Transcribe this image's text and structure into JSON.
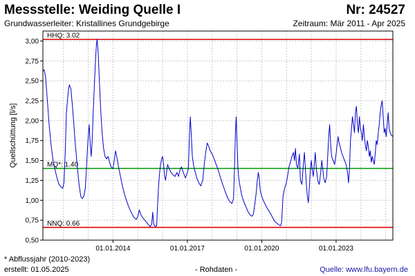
{
  "header": {
    "title": "Messstelle: Weiding Quelle I",
    "station_number": "Nr: 24527",
    "subtitle": "Grundwasserleiter: Kristallines Grundgebirge",
    "period": "Zeitraum: Mär 2011 - Apr 2025"
  },
  "footer": {
    "footnote": "* Abflussjahr (2010-2023)",
    "created": "erstellt:  01.05.2025",
    "raw_data": "- Rohdaten -",
    "source": "Quelle: www.lfu.bayern.de"
  },
  "colors": {
    "series": "#0000cc",
    "hhq": "#dd0000",
    "mq": "#009900",
    "nnq": "#dd0000",
    "grid": "#c8c8c8"
  },
  "chart_data": {
    "type": "line",
    "title": "Messstelle: Weiding Quelle I",
    "xlabel": "",
    "ylabel": "Quellschüttung [l/s]",
    "ylim": [
      0.5,
      3.125
    ],
    "xlim": [
      2011.17,
      2025.29
    ],
    "grid": true,
    "y_ticks": [
      "0,50",
      "0,75",
      "1,00",
      "1,25",
      "1,50",
      "1,75",
      "2,00",
      "2,25",
      "2,50",
      "2,75",
      "3,00"
    ],
    "x_ticks": [
      {
        "x": 2014.0,
        "label": "01.01.2014"
      },
      {
        "x": 2017.0,
        "label": "01.01.2017"
      },
      {
        "x": 2020.0,
        "label": "01.01.2020"
      },
      {
        "x": 2023.0,
        "label": "01.01.2023"
      }
    ],
    "reference_lines": [
      {
        "key": "hhq",
        "label": "HHQ: 3.02",
        "value": 3.02
      },
      {
        "key": "mq",
        "label": "MQ*: 1.40",
        "value": 1.4
      },
      {
        "key": "nnq",
        "label": "NNQ: 0.66",
        "value": 0.66
      }
    ],
    "series": [
      {
        "points": [
          [
            2011.17,
            2.62
          ],
          [
            2011.22,
            2.64
          ],
          [
            2011.28,
            2.55
          ],
          [
            2011.35,
            2.25
          ],
          [
            2011.42,
            1.95
          ],
          [
            2011.5,
            1.7
          ],
          [
            2011.58,
            1.5
          ],
          [
            2011.66,
            1.38
          ],
          [
            2011.74,
            1.28
          ],
          [
            2011.82,
            1.2
          ],
          [
            2011.9,
            1.17
          ],
          [
            2011.97,
            1.15
          ],
          [
            2012.02,
            1.22
          ],
          [
            2012.07,
            1.6
          ],
          [
            2012.12,
            2.1
          ],
          [
            2012.16,
            2.25
          ],
          [
            2012.2,
            2.38
          ],
          [
            2012.24,
            2.45
          ],
          [
            2012.3,
            2.4
          ],
          [
            2012.36,
            2.2
          ],
          [
            2012.42,
            1.95
          ],
          [
            2012.48,
            1.7
          ],
          [
            2012.55,
            1.45
          ],
          [
            2012.62,
            1.22
          ],
          [
            2012.7,
            1.05
          ],
          [
            2012.76,
            1.02
          ],
          [
            2012.82,
            1.05
          ],
          [
            2012.88,
            1.15
          ],
          [
            2012.92,
            1.35
          ],
          [
            2012.96,
            1.6
          ],
          [
            2013.0,
            1.8
          ],
          [
            2013.04,
            1.95
          ],
          [
            2013.08,
            1.7
          ],
          [
            2013.12,
            1.55
          ],
          [
            2013.16,
            1.75
          ],
          [
            2013.2,
            2.1
          ],
          [
            2013.25,
            2.45
          ],
          [
            2013.29,
            2.75
          ],
          [
            2013.33,
            2.95
          ],
          [
            2013.36,
            3.02
          ],
          [
            2013.4,
            2.85
          ],
          [
            2013.45,
            2.5
          ],
          [
            2013.5,
            2.15
          ],
          [
            2013.56,
            1.85
          ],
          [
            2013.62,
            1.65
          ],
          [
            2013.68,
            1.55
          ],
          [
            2013.74,
            1.52
          ],
          [
            2013.8,
            1.55
          ],
          [
            2013.86,
            1.48
          ],
          [
            2013.92,
            1.42
          ],
          [
            2014.0,
            1.4
          ],
          [
            2014.05,
            1.5
          ],
          [
            2014.1,
            1.62
          ],
          [
            2014.15,
            1.55
          ],
          [
            2014.22,
            1.42
          ],
          [
            2014.3,
            1.3
          ],
          [
            2014.38,
            1.18
          ],
          [
            2014.46,
            1.08
          ],
          [
            2014.54,
            1.0
          ],
          [
            2014.62,
            0.93
          ],
          [
            2014.7,
            0.87
          ],
          [
            2014.78,
            0.82
          ],
          [
            2014.86,
            0.78
          ],
          [
            2014.94,
            0.76
          ],
          [
            2015.0,
            0.8
          ],
          [
            2015.06,
            0.88
          ],
          [
            2015.12,
            0.82
          ],
          [
            2015.2,
            0.78
          ],
          [
            2015.28,
            0.75
          ],
          [
            2015.36,
            0.72
          ],
          [
            2015.44,
            0.69
          ],
          [
            2015.5,
            0.67
          ],
          [
            2015.56,
            0.7
          ],
          [
            2015.6,
            0.85
          ],
          [
            2015.64,
            0.7
          ],
          [
            2015.7,
            0.67
          ],
          [
            2015.76,
            0.68
          ],
          [
            2015.8,
            0.95
          ],
          [
            2015.84,
            1.2
          ],
          [
            2015.88,
            1.35
          ],
          [
            2015.92,
            1.45
          ],
          [
            2015.96,
            1.52
          ],
          [
            2016.0,
            1.55
          ],
          [
            2016.04,
            1.45
          ],
          [
            2016.08,
            1.3
          ],
          [
            2016.12,
            1.25
          ],
          [
            2016.16,
            1.35
          ],
          [
            2016.2,
            1.45
          ],
          [
            2016.26,
            1.4
          ],
          [
            2016.34,
            1.35
          ],
          [
            2016.42,
            1.32
          ],
          [
            2016.5,
            1.3
          ],
          [
            2016.58,
            1.35
          ],
          [
            2016.64,
            1.3
          ],
          [
            2016.7,
            1.38
          ],
          [
            2016.76,
            1.42
          ],
          [
            2016.8,
            1.38
          ],
          [
            2016.86,
            1.33
          ],
          [
            2016.92,
            1.28
          ],
          [
            2017.0,
            1.35
          ],
          [
            2017.04,
            1.4
          ],
          [
            2017.08,
            1.8
          ],
          [
            2017.12,
            2.05
          ],
          [
            2017.16,
            1.8
          ],
          [
            2017.2,
            1.55
          ],
          [
            2017.26,
            1.42
          ],
          [
            2017.32,
            1.35
          ],
          [
            2017.38,
            1.28
          ],
          [
            2017.46,
            1.22
          ],
          [
            2017.54,
            1.18
          ],
          [
            2017.62,
            1.25
          ],
          [
            2017.68,
            1.45
          ],
          [
            2017.74,
            1.6
          ],
          [
            2017.8,
            1.72
          ],
          [
            2017.86,
            1.68
          ],
          [
            2017.92,
            1.62
          ],
          [
            2018.0,
            1.58
          ],
          [
            2018.08,
            1.52
          ],
          [
            2018.16,
            1.45
          ],
          [
            2018.24,
            1.38
          ],
          [
            2018.32,
            1.3
          ],
          [
            2018.4,
            1.22
          ],
          [
            2018.48,
            1.15
          ],
          [
            2018.56,
            1.08
          ],
          [
            2018.64,
            1.02
          ],
          [
            2018.72,
            0.98
          ],
          [
            2018.8,
            0.96
          ],
          [
            2018.86,
            1.02
          ],
          [
            2018.9,
            1.4
          ],
          [
            2018.94,
            1.85
          ],
          [
            2018.97,
            2.05
          ],
          [
            2019.0,
            1.75
          ],
          [
            2019.04,
            1.4
          ],
          [
            2019.08,
            1.25
          ],
          [
            2019.14,
            1.15
          ],
          [
            2019.2,
            1.05
          ],
          [
            2019.28,
            0.98
          ],
          [
            2019.36,
            0.92
          ],
          [
            2019.44,
            0.86
          ],
          [
            2019.52,
            0.82
          ],
          [
            2019.6,
            0.8
          ],
          [
            2019.66,
            0.82
          ],
          [
            2019.72,
            0.95
          ],
          [
            2019.78,
            1.1
          ],
          [
            2019.82,
            1.25
          ],
          [
            2019.86,
            1.35
          ],
          [
            2019.9,
            1.28
          ],
          [
            2019.94,
            1.12
          ],
          [
            2020.0,
            1.05
          ],
          [
            2020.06,
            1.0
          ],
          [
            2020.14,
            0.95
          ],
          [
            2020.22,
            0.9
          ],
          [
            2020.3,
            0.86
          ],
          [
            2020.38,
            0.82
          ],
          [
            2020.46,
            0.77
          ],
          [
            2020.54,
            0.73
          ],
          [
            2020.62,
            0.71
          ],
          [
            2020.7,
            0.69
          ],
          [
            2020.76,
            0.68
          ],
          [
            2020.8,
            0.72
          ],
          [
            2020.86,
            1.05
          ],
          [
            2020.92,
            1.15
          ],
          [
            2020.98,
            1.2
          ],
          [
            2021.04,
            1.3
          ],
          [
            2021.1,
            1.42
          ],
          [
            2021.16,
            1.48
          ],
          [
            2021.22,
            1.55
          ],
          [
            2021.28,
            1.6
          ],
          [
            2021.32,
            1.5
          ],
          [
            2021.36,
            1.65
          ],
          [
            2021.4,
            1.45
          ],
          [
            2021.46,
            1.4
          ],
          [
            2021.52,
            1.58
          ],
          [
            2021.56,
            1.25
          ],
          [
            2021.62,
            1.2
          ],
          [
            2021.68,
            1.45
          ],
          [
            2021.72,
            1.6
          ],
          [
            2021.76,
            1.4
          ],
          [
            2021.8,
            1.2
          ],
          [
            2021.84,
            1.05
          ],
          [
            2021.88,
            0.97
          ],
          [
            2021.92,
            1.15
          ],
          [
            2021.96,
            1.38
          ],
          [
            2022.0,
            1.5
          ],
          [
            2022.04,
            1.38
          ],
          [
            2022.08,
            1.3
          ],
          [
            2022.12,
            1.45
          ],
          [
            2022.16,
            1.6
          ],
          [
            2022.2,
            1.4
          ],
          [
            2022.26,
            1.25
          ],
          [
            2022.32,
            1.2
          ],
          [
            2022.38,
            1.35
          ],
          [
            2022.42,
            1.5
          ],
          [
            2022.46,
            1.4
          ],
          [
            2022.5,
            1.28
          ],
          [
            2022.56,
            1.22
          ],
          [
            2022.62,
            1.3
          ],
          [
            2022.66,
            1.55
          ],
          [
            2022.7,
            1.8
          ],
          [
            2022.74,
            1.95
          ],
          [
            2022.78,
            1.7
          ],
          [
            2022.82,
            1.55
          ],
          [
            2022.88,
            1.5
          ],
          [
            2022.94,
            1.45
          ],
          [
            2023.0,
            1.58
          ],
          [
            2023.04,
            1.7
          ],
          [
            2023.08,
            1.8
          ],
          [
            2023.12,
            1.72
          ],
          [
            2023.16,
            1.68
          ],
          [
            2023.22,
            1.6
          ],
          [
            2023.28,
            1.55
          ],
          [
            2023.34,
            1.5
          ],
          [
            2023.4,
            1.45
          ],
          [
            2023.46,
            1.35
          ],
          [
            2023.5,
            1.22
          ],
          [
            2023.54,
            1.4
          ],
          [
            2023.58,
            1.75
          ],
          [
            2023.62,
            1.9
          ],
          [
            2023.66,
            2.05
          ],
          [
            2023.7,
            1.95
          ],
          [
            2023.74,
            1.85
          ],
          [
            2023.78,
            2.1
          ],
          [
            2023.82,
            2.18
          ],
          [
            2023.86,
            1.95
          ],
          [
            2023.9,
            1.85
          ],
          [
            2023.94,
            2.05
          ],
          [
            2023.98,
            1.9
          ],
          [
            2024.02,
            1.85
          ],
          [
            2024.06,
            1.75
          ],
          [
            2024.1,
            1.95
          ],
          [
            2024.14,
            1.8
          ],
          [
            2024.18,
            1.7
          ],
          [
            2024.22,
            1.62
          ],
          [
            2024.26,
            1.75
          ],
          [
            2024.3,
            1.68
          ],
          [
            2024.34,
            1.55
          ],
          [
            2024.38,
            1.62
          ],
          [
            2024.42,
            1.48
          ],
          [
            2024.46,
            1.55
          ],
          [
            2024.5,
            1.5
          ],
          [
            2024.54,
            1.45
          ],
          [
            2024.58,
            1.6
          ],
          [
            2024.62,
            1.75
          ],
          [
            2024.66,
            1.7
          ],
          [
            2024.7,
            1.85
          ],
          [
            2024.74,
            1.95
          ],
          [
            2024.78,
            2.1
          ],
          [
            2024.82,
            2.2
          ],
          [
            2024.86,
            2.25
          ],
          [
            2024.9,
            2.05
          ],
          [
            2024.94,
            1.85
          ],
          [
            2024.98,
            1.9
          ],
          [
            2025.02,
            1.8
          ],
          [
            2025.06,
            1.95
          ],
          [
            2025.1,
            2.1
          ],
          [
            2025.14,
            1.9
          ],
          [
            2025.18,
            1.85
          ],
          [
            2025.22,
            1.82
          ],
          [
            2025.29,
            1.8
          ]
        ]
      }
    ]
  }
}
